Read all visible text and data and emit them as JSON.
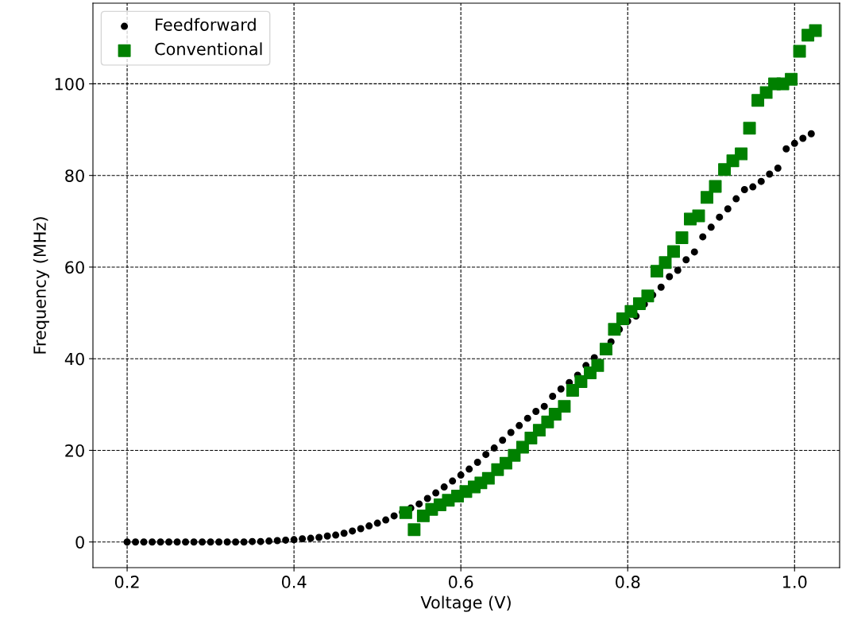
{
  "chart_data": {
    "type": "scatter",
    "xlabel": "Voltage (V)",
    "ylabel": "Frequency (MHz)",
    "xlim": [
      0.159,
      1.054
    ],
    "ylim": [
      -5.6,
      117.6
    ],
    "xticks": [
      0.2,
      0.4,
      0.6,
      0.8,
      {
        "value": 1.0,
        "label": "1.0"
      }
    ],
    "yticks": [
      0,
      20,
      40,
      60,
      80,
      100
    ],
    "grid": true,
    "legend": "top left",
    "series": [
      {
        "name": "Feedforward",
        "color": "#000000",
        "marker": "circle",
        "x": [
          0.2,
          0.21,
          0.22,
          0.23,
          0.24,
          0.25,
          0.26,
          0.27,
          0.28,
          0.29,
          0.3,
          0.31,
          0.32,
          0.33,
          0.34,
          0.35,
          0.36,
          0.37,
          0.38,
          0.39,
          0.4,
          0.41,
          0.42,
          0.43,
          0.44,
          0.45,
          0.46,
          0.47,
          0.48,
          0.49,
          0.5,
          0.51,
          0.52,
          0.53,
          0.54,
          0.55,
          0.56,
          0.57,
          0.58,
          0.59,
          0.6,
          0.61,
          0.62,
          0.63,
          0.64,
          0.65,
          0.66,
          0.67,
          0.68,
          0.69,
          0.7,
          0.71,
          0.72,
          0.73,
          0.74,
          0.75,
          0.76,
          0.77,
          0.78,
          0.79,
          0.8,
          0.81,
          0.82,
          0.83,
          0.84,
          0.85,
          0.86,
          0.87,
          0.88,
          0.89,
          0.9,
          0.91,
          0.92,
          0.93,
          0.94,
          0.95,
          0.96,
          0.97,
          0.98,
          0.99,
          1.0,
          1.01,
          1.02
        ],
        "values": [
          0,
          0,
          0,
          0,
          0,
          0,
          0,
          0,
          0,
          0,
          0,
          0,
          0,
          0,
          0,
          0.1,
          0.1,
          0.2,
          0.3,
          0.4,
          0.5,
          0.7,
          0.8,
          1.0,
          1.3,
          1.5,
          1.9,
          2.4,
          2.9,
          3.5,
          4.1,
          4.8,
          5.7,
          6.5,
          7.4,
          8.3,
          9.5,
          10.7,
          12.0,
          13.3,
          14.6,
          15.9,
          17.4,
          19.1,
          20.5,
          22.2,
          23.9,
          25.4,
          27.0,
          28.5,
          29.6,
          31.8,
          33.4,
          34.8,
          36.4,
          38.5,
          40.2,
          null,
          43.7,
          46.4,
          48.2,
          49.3,
          51.9,
          53.9,
          55.6,
          57.9,
          59.3,
          61.6,
          63.3,
          66.6,
          68.7,
          70.9,
          72.7,
          74.9,
          76.9,
          77.5,
          78.7,
          80.3,
          81.6,
          85.8,
          87.0,
          88.1,
          89.1
        ]
      },
      {
        "name": "Conventional",
        "color": "#008000",
        "marker": "square",
        "x": [
          0.534,
          0.544,
          0.555,
          0.565,
          0.575,
          0.585,
          0.596,
          0.606,
          0.616,
          0.624,
          0.633,
          0.644,
          0.654,
          0.664,
          0.674,
          0.684,
          0.694,
          0.704,
          0.713,
          0.724,
          0.734,
          0.744,
          0.755,
          0.764,
          0.774,
          0.784,
          0.794,
          0.804,
          0.814,
          0.824,
          0.835,
          0.845,
          0.855,
          0.865,
          0.875,
          0.885,
          0.895,
          0.905,
          0.916,
          0.926,
          0.936,
          0.946,
          0.956,
          0.966,
          0.976,
          0.986,
          0.996,
          1.006,
          1.016,
          1.025
        ],
        "values": [
          6.4,
          2.7,
          5.7,
          7.1,
          8.1,
          9.1,
          10.0,
          11.0,
          12.0,
          12.9,
          13.9,
          15.8,
          17.2,
          18.9,
          20.7,
          22.7,
          24.4,
          26.2,
          27.9,
          29.6,
          33.1,
          35.0,
          36.9,
          38.5,
          42.1,
          46.4,
          48.7,
          50.3,
          52.0,
          53.7,
          59.1,
          61.0,
          63.4,
          66.4,
          70.5,
          71.2,
          75.2,
          77.6,
          81.3,
          83.2,
          84.7,
          90.3,
          96.4,
          98.1,
          100.0,
          100.0,
          101.0,
          107.1,
          110.6,
          111.6
        ]
      }
    ]
  }
}
